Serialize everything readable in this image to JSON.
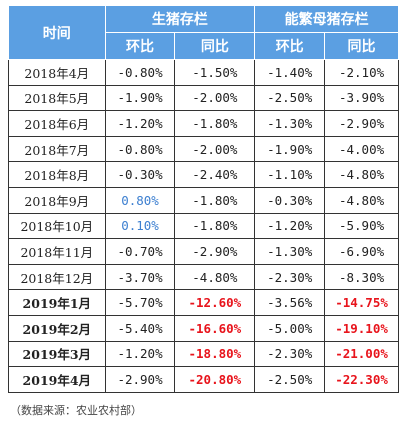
{
  "table": {
    "header": {
      "time": "时间",
      "groups": [
        "生猪存栏",
        "能繁母猪存栏"
      ],
      "subs": [
        "环比",
        "同比",
        "环比",
        "同比"
      ]
    },
    "rows": [
      [
        "2018年4月",
        "-0.80%",
        "-1.50%",
        "-1.40%",
        "-2.10%"
      ],
      [
        "2018年5月",
        "-1.90%",
        "-2.00%",
        "-2.50%",
        "-3.90%"
      ],
      [
        "2018年6月",
        "-1.20%",
        "-1.80%",
        "-1.30%",
        "-2.90%"
      ],
      [
        "2018年7月",
        "-0.80%",
        "-2.00%",
        "-1.90%",
        "-4.00%"
      ],
      [
        "2018年8月",
        "-0.30%",
        "-2.40%",
        "-1.10%",
        "-4.80%"
      ],
      [
        "2018年9月",
        "0.80%",
        "-1.80%",
        "-0.30%",
        "-4.80%"
      ],
      [
        "2018年10月",
        "0.10%",
        "-1.80%",
        "-1.20%",
        "-5.90%"
      ],
      [
        "2018年11月",
        "-0.70%",
        "-2.90%",
        "-1.30%",
        "-6.90%"
      ],
      [
        "2018年12月",
        "-3.70%",
        "-4.80%",
        "-2.30%",
        "-8.30%"
      ],
      [
        "2019年1月",
        "-5.70%",
        "-12.60%",
        "-3.56%",
        "-14.75%"
      ],
      [
        "2019年2月",
        "-5.40%",
        "-16.60%",
        "-5.00%",
        "-19.10%"
      ],
      [
        "2019年3月",
        "-1.20%",
        "-18.80%",
        "-2.30%",
        "-21.00%"
      ],
      [
        "2019年4月",
        "-2.90%",
        "-20.80%",
        "-2.50%",
        "-22.30%"
      ]
    ]
  },
  "source": "（数据来源：农业农村部）"
}
